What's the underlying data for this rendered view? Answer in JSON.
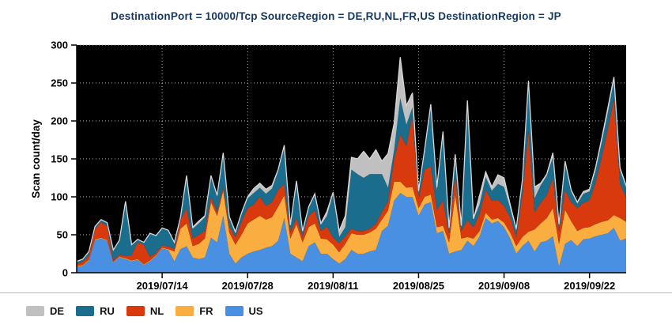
{
  "chart_data": {
    "type": "area",
    "stacked": true,
    "title": "DestinationPort = 10000/Tcp SourceRegion = DE,RU,NL,FR,US DestinationRegion = JP",
    "title_color": "#17375e",
    "ylabel": "Scan count/day",
    "ylim": [
      0,
      300
    ],
    "yticks": [
      0,
      50,
      100,
      150,
      200,
      250,
      300
    ],
    "x_tick_labels": [
      "2019/07/14",
      "2019/07/28",
      "2019/08/11",
      "2019/08/25",
      "2019/09/08",
      "2019/09/22"
    ],
    "plot_background": "#000000",
    "gridline_color": "#b4b4b4",
    "grid_style": "dotted",
    "total_outline_color": "#d8d8d8",
    "legend_position": "bottom-left",
    "legend": [
      {
        "label": "DE",
        "color": "#c0c0c0"
      },
      {
        "label": "RU",
        "color": "#1b6d8e"
      },
      {
        "label": "NL",
        "color": "#d93a0d"
      },
      {
        "label": "FR",
        "color": "#f9ae3f"
      },
      {
        "label": "US",
        "color": "#4a90e2"
      }
    ],
    "dates": [
      "2019/06/30",
      "2019/07/01",
      "2019/07/02",
      "2019/07/03",
      "2019/07/04",
      "2019/07/05",
      "2019/07/06",
      "2019/07/07",
      "2019/07/08",
      "2019/07/09",
      "2019/07/10",
      "2019/07/11",
      "2019/07/12",
      "2019/07/13",
      "2019/07/14",
      "2019/07/15",
      "2019/07/16",
      "2019/07/17",
      "2019/07/18",
      "2019/07/19",
      "2019/07/20",
      "2019/07/21",
      "2019/07/22",
      "2019/07/23",
      "2019/07/24",
      "2019/07/25",
      "2019/07/26",
      "2019/07/27",
      "2019/07/28",
      "2019/07/29",
      "2019/07/30",
      "2019/07/31",
      "2019/08/01",
      "2019/08/02",
      "2019/08/03",
      "2019/08/04",
      "2019/08/05",
      "2019/08/06",
      "2019/08/07",
      "2019/08/08",
      "2019/08/09",
      "2019/08/10",
      "2019/08/11",
      "2019/08/12",
      "2019/08/13",
      "2019/08/14",
      "2019/08/15",
      "2019/08/16",
      "2019/08/17",
      "2019/08/18",
      "2019/08/19",
      "2019/08/20",
      "2019/08/21",
      "2019/08/22",
      "2019/08/23",
      "2019/08/24",
      "2019/08/25",
      "2019/08/26",
      "2019/08/27",
      "2019/08/28",
      "2019/08/29",
      "2019/08/30",
      "2019/08/31",
      "2019/09/01",
      "2019/09/02",
      "2019/09/03",
      "2019/09/04",
      "2019/09/05",
      "2019/09/06",
      "2019/09/07",
      "2019/09/08",
      "2019/09/09",
      "2019/09/10",
      "2019/09/11",
      "2019/09/12",
      "2019/09/13",
      "2019/09/14",
      "2019/09/15",
      "2019/09/16",
      "2019/09/17",
      "2019/09/18",
      "2019/09/19",
      "2019/09/20",
      "2019/09/21",
      "2019/09/22",
      "2019/09/23",
      "2019/09/24",
      "2019/09/25",
      "2019/09/26",
      "2019/09/27",
      "2019/09/28"
    ],
    "series": [
      {
        "name": "US",
        "color": "#4a90e2",
        "values": [
          8,
          9,
          16,
          43,
          45,
          42,
          13,
          20,
          18,
          15,
          17,
          10,
          15,
          22,
          32,
          30,
          15,
          31,
          35,
          20,
          18,
          20,
          46,
          40,
          75,
          25,
          12,
          20,
          25,
          28,
          30,
          33,
          35,
          42,
          72,
          25,
          20,
          15,
          35,
          40,
          25,
          25,
          18,
          12,
          18,
          30,
          25,
          25,
          28,
          30,
          55,
          62,
          95,
          105,
          100,
          100,
          75,
          90,
          93,
          52,
          55,
          25,
          28,
          30,
          42,
          35,
          48,
          72,
          65,
          68,
          60,
          45,
          25,
          35,
          42,
          28,
          40,
          42,
          48,
          8,
          38,
          43,
          35,
          44,
          45,
          48,
          50,
          52,
          59,
          42,
          45
        ]
      },
      {
        "name": "FR",
        "color": "#f9ae3f",
        "values": [
          1,
          1,
          1,
          1,
          1,
          1,
          1,
          1,
          1,
          1,
          1,
          1,
          1,
          1,
          1,
          1,
          13,
          27,
          30,
          15,
          20,
          25,
          47,
          35,
          33,
          28,
          25,
          30,
          40,
          42,
          45,
          37,
          38,
          45,
          30,
          20,
          44,
          25,
          25,
          25,
          20,
          19,
          19,
          15,
          20,
          22,
          25,
          25,
          25,
          28,
          15,
          20,
          25,
          15,
          12,
          13,
          10,
          10,
          10,
          8,
          7,
          15,
          75,
          15,
          5,
          10,
          7,
          7,
          5,
          4,
          6,
          8,
          10,
          12,
          12,
          29,
          25,
          30,
          37,
          30,
          45,
          25,
          20,
          15,
          15,
          16,
          17,
          17,
          17,
          30,
          22
        ]
      },
      {
        "name": "NL",
        "color": "#d93a0d",
        "values": [
          3,
          4,
          6,
          13,
          21,
          18,
          2,
          3,
          3,
          7,
          22,
          26,
          5,
          3,
          3,
          4,
          3,
          11,
          20,
          10,
          12,
          10,
          7,
          5,
          5,
          8,
          10,
          17,
          20,
          20,
          25,
          18,
          20,
          22,
          15,
          8,
          8,
          8,
          15,
          17,
          10,
          17,
          9,
          12,
          10,
          6,
          5,
          5,
          5,
          6,
          10,
          12,
          30,
          62,
          55,
          94,
          12,
          36,
          37,
          23,
          33,
          12,
          25,
          10,
          22,
          15,
          23,
          30,
          25,
          24,
          22,
          20,
          12,
          55,
          133,
          23,
          27,
          30,
          40,
          17,
          26,
          25,
          30,
          33,
          35,
          55,
          85,
          120,
          153,
          45,
          32
        ]
      },
      {
        "name": "RU",
        "color": "#1b6d8e",
        "values": [
          2,
          3,
          4,
          3,
          2,
          5,
          14,
          19,
          71,
          14,
          4,
          3,
          31,
          23,
          23,
          21,
          9,
          4,
          40,
          13,
          15,
          18,
          26,
          20,
          42,
          11,
          5,
          10,
          13,
          15,
          12,
          16,
          18,
          25,
          48,
          10,
          48,
          6,
          10,
          20,
          8,
          14,
          58,
          8,
          12,
          78,
          75,
          70,
          72,
          66,
          50,
          18,
          12,
          48,
          28,
          11,
          8,
          24,
          77,
          25,
          89,
          6,
          25,
          7,
          156,
          10,
          12,
          17,
          13,
          21,
          25,
          12,
          8,
          18,
          63,
          18,
          23,
          26,
          27,
          6,
          36,
          14,
          6,
          12,
          12,
          16,
          20,
          22,
          24,
          18,
          13
        ]
      },
      {
        "name": "DE",
        "color": "#c0c0c0",
        "values": [
          1,
          1,
          1,
          1,
          1,
          0,
          0,
          0,
          1,
          0,
          0,
          0,
          0,
          0,
          0,
          0,
          0,
          0,
          3,
          2,
          3,
          2,
          2,
          2,
          3,
          2,
          2,
          2,
          2,
          6,
          6,
          6,
          4,
          2,
          3,
          0,
          1,
          1,
          2,
          2,
          2,
          6,
          2,
          8,
          15,
          16,
          20,
          35,
          20,
          32,
          17,
          45,
          35,
          54,
          25,
          19,
          3,
          3,
          5,
          5,
          2,
          1,
          3,
          0,
          2,
          1,
          12,
          7,
          5,
          12,
          12,
          5,
          3,
          2,
          3,
          15,
          3,
          2,
          6,
          3,
          2,
          2,
          2,
          3,
          3,
          4,
          5,
          6,
          5,
          3,
          3
        ]
      }
    ]
  }
}
